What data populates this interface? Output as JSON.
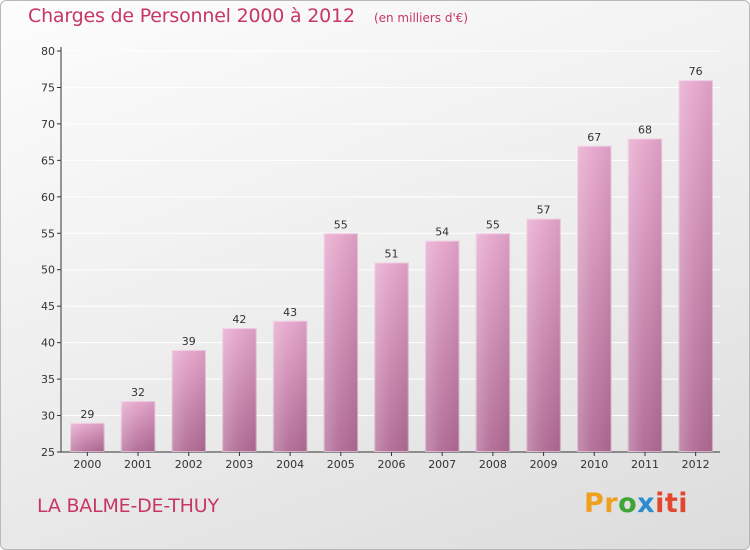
{
  "header": {
    "title": "Charges de Personnel 2000 à 2012",
    "unit": "(en milliers d'€)"
  },
  "footer": {
    "commune": "LA BALME-DE-THUY",
    "logo_letters": [
      "Pr",
      "o",
      "x",
      "iti"
    ]
  },
  "colors": {
    "bar_top": "#e6a6cc",
    "bar_bottom": "#b06a94",
    "title": "#c83764",
    "axis": "#333333",
    "grid": "#ffffff"
  },
  "chart_data": {
    "type": "bar",
    "title": "Charges de Personnel 2000 à 2012",
    "subtitle": "(en milliers d'€)",
    "categories": [
      "2000",
      "2001",
      "2002",
      "2003",
      "2004",
      "2005",
      "2006",
      "2007",
      "2008",
      "2009",
      "2010",
      "2011",
      "2012"
    ],
    "values": [
      29,
      32,
      39,
      42,
      43,
      55,
      51,
      54,
      55,
      57,
      67,
      68,
      76
    ],
    "ylim": [
      25,
      80
    ],
    "yticks": [
      25,
      30,
      35,
      40,
      45,
      50,
      55,
      60,
      65,
      70,
      75,
      80
    ],
    "xlabel": "",
    "ylabel": "",
    "grid": true
  }
}
